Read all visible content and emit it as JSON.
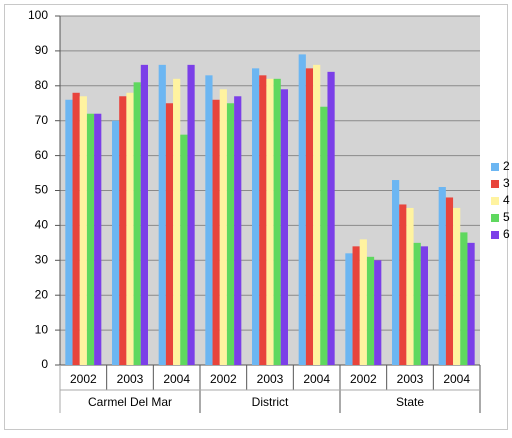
{
  "chart_data": {
    "type": "bar",
    "categories": [
      "2002",
      "2003",
      "2004",
      "2002",
      "2003",
      "2004",
      "2002",
      "2003",
      "2004"
    ],
    "group_labels": [
      "Carmel Del Mar",
      "District",
      "State"
    ],
    "series": [
      {
        "name": "2",
        "color": "#6cb6f2",
        "values": [
          76,
          70,
          86,
          83,
          85,
          89,
          32,
          53,
          51
        ]
      },
      {
        "name": "3",
        "color": "#e8443c",
        "values": [
          78,
          77,
          75,
          76,
          83,
          85,
          34,
          46,
          48
        ]
      },
      {
        "name": "4",
        "color": "#fff3a0",
        "values": [
          77,
          78,
          82,
          79,
          82,
          86,
          36,
          45,
          45
        ]
      },
      {
        "name": "5",
        "color": "#5fd85f",
        "values": [
          72,
          81,
          66,
          75,
          82,
          74,
          31,
          35,
          38
        ]
      },
      {
        "name": "6",
        "color": "#7b3fe8",
        "values": [
          72,
          86,
          86,
          77,
          79,
          84,
          30,
          34,
          35
        ]
      }
    ],
    "ylim": [
      0,
      100
    ],
    "yticks": [
      0,
      10,
      20,
      30,
      40,
      50,
      60,
      70,
      80,
      90,
      100
    ],
    "grid": true
  }
}
